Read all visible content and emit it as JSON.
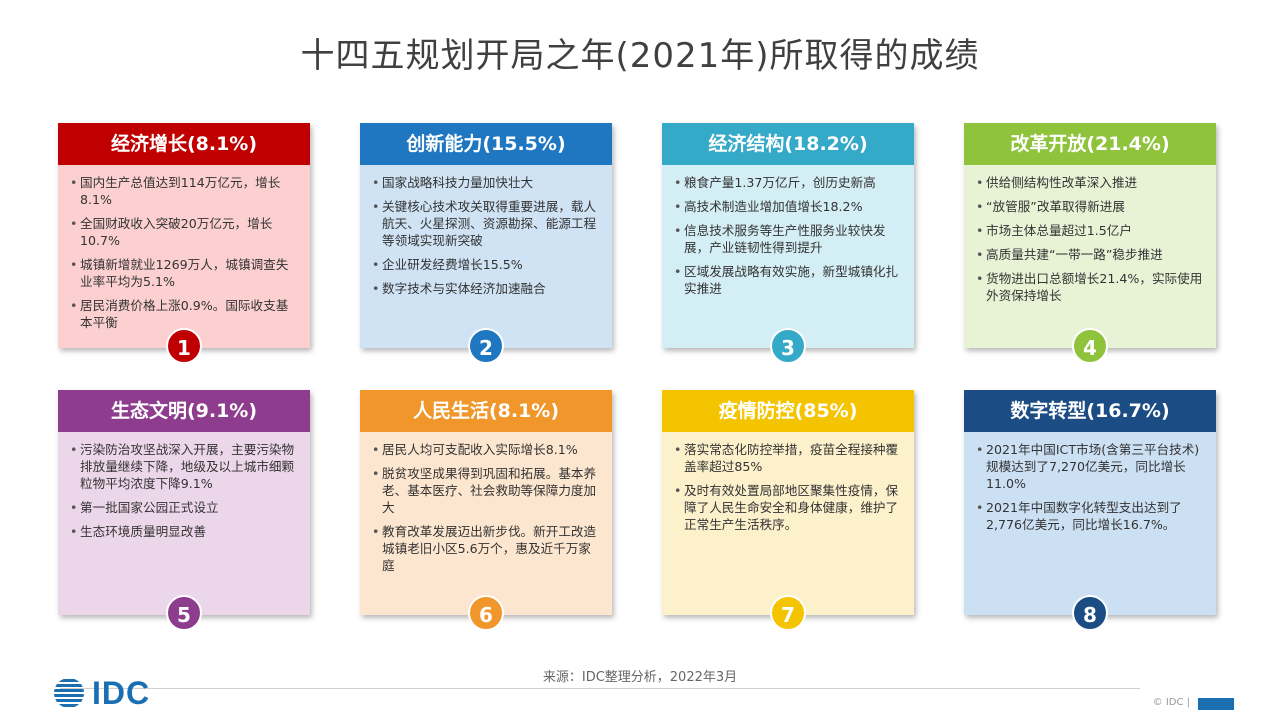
{
  "title": "十四五规划开局之年(2021年)所取得的成绩",
  "cards": [
    {
      "header": "经济增长(8.1%)",
      "number": "1",
      "colors": {
        "header": "#c00000",
        "body": "#fcd0d0",
        "num": "#c00000"
      },
      "items": [
        "国内生产总值达到114万亿元，增长8.1%",
        "全国财政收入突破20万亿元，增长10.7%",
        "城镇新增就业1269万人，城镇调查失业率平均为5.1%",
        "居民消费价格上涨0.9%。国际收支基本平衡"
      ]
    },
    {
      "header": "创新能力(15.5%)",
      "number": "2",
      "colors": {
        "header": "#1f77c2",
        "body": "#cfe3f4",
        "num": "#1f77c2"
      },
      "items": [
        "国家战略科技力量加快壮大",
        "关键核心技术攻关取得重要进展，载人航天、火星探测、资源勘探、能源工程等领域实现新突破",
        "企业研发经费增长15.5%",
        "数字技术与实体经济加速融合"
      ]
    },
    {
      "header": "经济结构(18.2%)",
      "number": "3",
      "colors": {
        "header": "#35a9c8",
        "body": "#d4eef5",
        "num": "#35a9c8"
      },
      "items": [
        "粮食产量1.37万亿斤，创历史新高",
        "高技术制造业增加值增长18.2%",
        "信息技术服务等生产性服务业较快发展，产业链韧性得到提升",
        "区域发展战略有效实施，新型城镇化扎实推进"
      ]
    },
    {
      "header": "改革开放(21.4%)",
      "number": "4",
      "colors": {
        "header": "#8fc33c",
        "body": "#e8f3d6",
        "num": "#8fc33c"
      },
      "items": [
        "供给侧结构性改革深入推进",
        "“放管服”改革取得新进展",
        "市场主体总量超过1.5亿户",
        "高质量共建“一带一路”稳步推进",
        "货物进出口总额增长21.4%，实际使用外资保持增长"
      ]
    },
    {
      "header": "生态文明(9.1%)",
      "number": "5",
      "colors": {
        "header": "#8e3d8e",
        "body": "#ecd7ea",
        "num": "#8e3d8e"
      },
      "items": [
        "污染防治攻坚战深入开展，主要污染物排放量继续下降，地级及以上城市细颗粒物平均浓度下降9.1%",
        "第一批国家公园正式设立",
        "生态环境质量明显改善"
      ]
    },
    {
      "header": "人民生活(8.1%)",
      "number": "6",
      "colors": {
        "header": "#f0962a",
        "body": "#fde6cf",
        "num": "#f0962a"
      },
      "items": [
        "居民人均可支配收入实际增长8.1%",
        "脱贫攻坚成果得到巩固和拓展。基本养老、基本医疗、社会救助等保障力度加大",
        "教育改革发展迈出新步伐。新开工改造城镇老旧小区5.6万个，惠及近千万家庭"
      ]
    },
    {
      "header": "疫情防控(85%)",
      "number": "7",
      "colors": {
        "header": "#f5c400",
        "body": "#fdf1cc",
        "num": "#f5c400"
      },
      "items": [
        "落实常态化防控举措，疫苗全程接种覆盖率超过85%",
        "及时有效处置局部地区聚集性疫情，保障了人民生命安全和身体健康，维护了正常生产生活秩序。"
      ]
    },
    {
      "header": "数字转型(16.7%)",
      "number": "8",
      "colors": {
        "header": "#1c4c84",
        "body": "#cce0f4",
        "num": "#1c4c84"
      },
      "items": [
        "2021年中国ICT市场(含第三平台技术)规模达到了7,270亿美元，同比增长11.0%",
        "2021年中国数字化转型支出达到了2,776亿美元，同比增长16.7%。"
      ]
    }
  ],
  "source": "来源：IDC整理分析，2022年3月",
  "logo_text": "IDC",
  "copyright": "© IDC |"
}
